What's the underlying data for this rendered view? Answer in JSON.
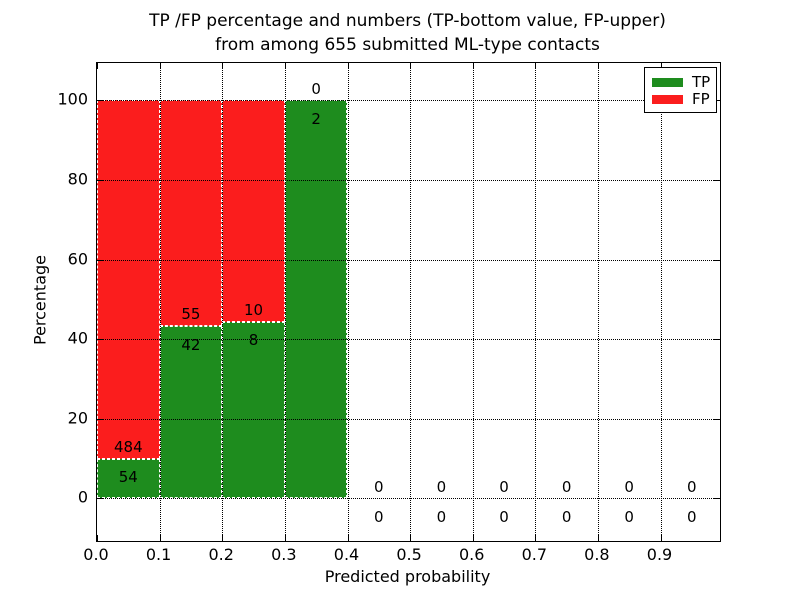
{
  "chart_data": {
    "type": "bar",
    "stacked": true,
    "title_line1": "TP /FP percentage and numbers (TP-bottom value, FP-upper)",
    "title_line2": "from among 655 submitted ML-type contacts",
    "xlabel": "Predicted probability",
    "ylabel": "Percentage",
    "xlim": [
      0.0,
      0.995
    ],
    "ylim": [
      -10.7,
      109.4
    ],
    "x_tick_values": [
      0.0,
      0.1,
      0.2,
      0.3,
      0.4,
      0.5,
      0.6,
      0.7,
      0.8,
      0.9
    ],
    "x_tick_labels": [
      "0.0",
      "0.1",
      "0.2",
      "0.3",
      "0.4",
      "0.5",
      "0.6",
      "0.7",
      "0.8",
      "0.9"
    ],
    "y_tick_values": [
      0,
      20,
      40,
      60,
      80,
      100
    ],
    "y_tick_labels": [
      "0",
      "20",
      "40",
      "60",
      "80",
      "100"
    ],
    "grid": true,
    "colors": {
      "tp": "#1e8c1e",
      "fp": "#fb1d1d"
    },
    "legend": {
      "position": "upper-right",
      "entries": [
        {
          "label": "TP",
          "key": "tp"
        },
        {
          "label": "FP",
          "key": "fp"
        }
      ]
    },
    "bins": [
      {
        "range": [
          0.0,
          0.1
        ],
        "tp": 54,
        "fp": 484,
        "tp_pct": 10.0,
        "fp_pct": 90.0
      },
      {
        "range": [
          0.1,
          0.2
        ],
        "tp": 42,
        "fp": 55,
        "tp_pct": 43.3,
        "fp_pct": 56.7
      },
      {
        "range": [
          0.2,
          0.3
        ],
        "tp": 8,
        "fp": 10,
        "tp_pct": 44.4,
        "fp_pct": 55.6
      },
      {
        "range": [
          0.3,
          0.4
        ],
        "tp": 2,
        "fp": 0,
        "tp_pct": 100.0,
        "fp_pct": 0.0
      },
      {
        "range": [
          0.4,
          0.5
        ],
        "tp": 0,
        "fp": 0,
        "tp_pct": 0.0,
        "fp_pct": 0.0
      },
      {
        "range": [
          0.5,
          0.6
        ],
        "tp": 0,
        "fp": 0,
        "tp_pct": 0.0,
        "fp_pct": 0.0
      },
      {
        "range": [
          0.6,
          0.7
        ],
        "tp": 0,
        "fp": 0,
        "tp_pct": 0.0,
        "fp_pct": 0.0
      },
      {
        "range": [
          0.7,
          0.8
        ],
        "tp": 0,
        "fp": 0,
        "tp_pct": 0.0,
        "fp_pct": 0.0
      },
      {
        "range": [
          0.8,
          0.9
        ],
        "tp": 0,
        "fp": 0,
        "tp_pct": 0.0,
        "fp_pct": 0.0
      },
      {
        "range": [
          0.9,
          1.0
        ],
        "tp": 0,
        "fp": 0,
        "tp_pct": 0.0,
        "fp_pct": 0.0
      }
    ]
  }
}
